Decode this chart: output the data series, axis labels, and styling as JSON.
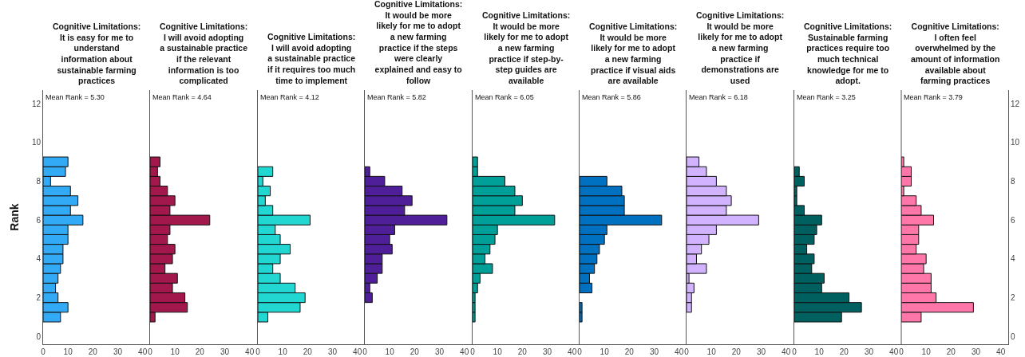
{
  "chart_data": [
    {
      "type": "histogram",
      "title": "Cognitive Limitations:\nIt is easy for me to\nunderstand\ninformation about\nsustainable farming\npractices",
      "ylabel": "Rank",
      "annotations": [
        "Mean Rank = 5.30"
      ],
      "bins": [
        0.75,
        1.25,
        1.75,
        2.25,
        2.75,
        3.25,
        3.75,
        4.25,
        4.75,
        5.25,
        5.75,
        6.25,
        6.75,
        7.25,
        7.75,
        8.25,
        8.75,
        9.25
      ],
      "values": [
        7,
        10,
        6,
        5,
        6,
        7,
        8,
        8,
        10,
        10,
        16,
        11,
        14,
        11,
        3,
        9,
        10
      ],
      "orientation": "horizontal",
      "color": "#33aaf5",
      "xlim": [
        0,
        43
      ],
      "xticks": [
        0,
        10,
        20,
        30,
        40
      ],
      "ylim": [
        -0.4,
        12.7
      ],
      "yticks": [
        0,
        2,
        4,
        6,
        8,
        10,
        12
      ]
    },
    {
      "type": "histogram",
      "title": "Cognitive Limitations:\nI will avoid adopting\na sustainable practice\nif the relevant\ninformation is too\ncomplicated",
      "annotations": [
        "Mean Rank = 4.64"
      ],
      "bins": [
        0.75,
        1.25,
        1.75,
        2.25,
        2.75,
        3.25,
        3.75,
        4.25,
        4.75,
        5.25,
        5.75,
        6.25,
        6.75,
        7.25,
        7.75,
        8.25,
        8.75,
        9.25
      ],
      "values": [
        2,
        15,
        14,
        9,
        11,
        6,
        9,
        10,
        7,
        8,
        24,
        8,
        10,
        7,
        4,
        3,
        4
      ],
      "orientation": "horizontal",
      "color": "#a3184c",
      "xlim": [
        0,
        43
      ],
      "xticks": [
        0,
        10,
        20,
        30,
        40
      ],
      "ylim": [
        -0.4,
        12.7
      ],
      "yticks": [
        0,
        2,
        4,
        6,
        8,
        10,
        12
      ],
      "tick_labels": "x"
    },
    {
      "type": "histogram",
      "title": "Cognitive Limitations:\nI will avoid adopting\na sustainable practice\nif it requires too much\ntime to implement",
      "annotations": [
        "Mean Rank = 4.12"
      ],
      "bins": [
        0.75,
        1.25,
        1.75,
        2.25,
        2.75,
        3.25,
        3.75,
        4.25,
        4.75,
        5.25,
        5.75,
        6.25,
        6.75,
        7.25,
        7.75,
        8.25,
        8.75,
        9.25
      ],
      "values": [
        4,
        17,
        19,
        15,
        9,
        6,
        9,
        13,
        9,
        7,
        21,
        6,
        3,
        5,
        2,
        6,
        0
      ],
      "orientation": "horizontal",
      "color": "#22d6d2",
      "xlim": [
        0,
        43
      ],
      "xticks": [
        0,
        10,
        20,
        30,
        40
      ],
      "ylim": [
        -0.4,
        12.7
      ],
      "yticks": [
        0,
        2,
        4,
        6,
        8,
        10,
        12
      ],
      "tick_labels": "x"
    },
    {
      "type": "histogram",
      "title": "Cognitive Limitations:\nIt would be more\nlikely for me to adopt\na new farming\npractice if the steps\nwere clearly\nexplained and easy to\nfollow",
      "annotations": [
        "Mean Rank = 5.82"
      ],
      "bins": [
        0.75,
        1.25,
        1.75,
        2.25,
        2.75,
        3.25,
        3.75,
        4.25,
        4.75,
        5.25,
        5.75,
        6.25,
        6.75,
        7.25,
        7.75,
        8.25,
        8.75,
        9.25
      ],
      "values": [
        0,
        0,
        3,
        2,
        5,
        7,
        7,
        11,
        10,
        12,
        33,
        16,
        19,
        15,
        8,
        2,
        0
      ],
      "orientation": "horizontal",
      "color": "#4f1f99",
      "xlim": [
        0,
        43
      ],
      "xticks": [
        0,
        10,
        20,
        30,
        40
      ],
      "ylim": [
        -0.4,
        12.7
      ],
      "yticks": [
        0,
        2,
        4,
        6,
        8,
        10,
        12
      ],
      "tick_labels": "x"
    },
    {
      "type": "histogram",
      "title": "Cognitive Limitations:\nIt would be more\nlikely for me to adopt\na new farming\npractice if step-by-\nstep guides are\navailable",
      "annotations": [
        "Mean Rank = 6.05"
      ],
      "bins": [
        0.75,
        1.25,
        1.75,
        2.25,
        2.75,
        3.25,
        3.75,
        4.25,
        4.75,
        5.25,
        5.75,
        6.25,
        6.75,
        7.25,
        7.75,
        8.25,
        8.75,
        9.25
      ],
      "values": [
        1,
        1,
        1,
        2,
        3,
        8,
        5,
        7,
        9,
        10,
        33,
        17,
        20,
        17,
        13,
        2,
        2
      ],
      "orientation": "horizontal",
      "color": "#00a099",
      "xlim": [
        0,
        43
      ],
      "xticks": [
        0,
        10,
        20,
        30,
        40
      ],
      "ylim": [
        -0.4,
        12.7
      ],
      "yticks": [
        0,
        2,
        4,
        6,
        8,
        10,
        12
      ],
      "tick_labels": "x"
    },
    {
      "type": "histogram",
      "title": "Cognitive Limitations:\nIt would be more\nlikely for me to adopt\na new farming\npractice if visual aids\nare available",
      "annotations": [
        "Mean Rank = 5.86"
      ],
      "bins": [
        0.75,
        1.25,
        1.75,
        2.25,
        2.75,
        3.25,
        3.75,
        4.25,
        4.75,
        5.25,
        5.75,
        6.25,
        6.75,
        7.25,
        7.75,
        8.25,
        8.75,
        9.25
      ],
      "values": [
        1,
        1,
        0,
        5,
        4,
        6,
        7,
        8,
        10,
        11,
        33,
        18,
        18,
        17,
        11,
        0,
        0
      ],
      "orientation": "horizontal",
      "color": "#0070c0",
      "xlim": [
        0,
        43
      ],
      "xticks": [
        0,
        10,
        20,
        30,
        40
      ],
      "ylim": [
        -0.4,
        12.7
      ],
      "yticks": [
        0,
        2,
        4,
        6,
        8,
        10,
        12
      ],
      "tick_labels": "x"
    },
    {
      "type": "histogram",
      "title": "Cognitive Limitations:\nIt would be more\nlikely for me to adopt\na new farming\npractice if\ndemonstrations are\nused",
      "annotations": [
        "Mean Rank = 6.18"
      ],
      "bins": [
        0.75,
        1.25,
        1.75,
        2.25,
        2.75,
        3.25,
        3.75,
        4.25,
        4.75,
        5.25,
        5.75,
        6.25,
        6.75,
        7.25,
        7.75,
        8.25,
        8.75,
        9.25
      ],
      "values": [
        0,
        2,
        2,
        3,
        1,
        8,
        4,
        6,
        9,
        12,
        29,
        16,
        18,
        16,
        12,
        8,
        5
      ],
      "orientation": "horizontal",
      "color": "#d1b3ff",
      "xlim": [
        0,
        43
      ],
      "xticks": [
        0,
        10,
        20,
        30,
        40
      ],
      "ylim": [
        -0.4,
        12.7
      ],
      "yticks": [
        0,
        2,
        4,
        6,
        8,
        10,
        12
      ],
      "tick_labels": "x"
    },
    {
      "type": "histogram",
      "title": "Cognitive Limitations:\nSustainable farming\npractices require too\nmuch technical\nknowledge for me to\nadopt.",
      "annotations": [
        "Mean Rank = 3.25"
      ],
      "bins": [
        0.75,
        1.25,
        1.75,
        2.25,
        2.75,
        3.25,
        3.75,
        4.25,
        4.75,
        5.25,
        5.75,
        6.25,
        6.75,
        7.25,
        7.75,
        8.25,
        8.75,
        9.25
      ],
      "values": [
        19,
        27,
        22,
        11,
        12,
        7,
        8,
        5,
        8,
        9,
        11,
        4,
        1,
        1,
        4,
        2,
        0
      ],
      "orientation": "horizontal",
      "color": "#006060",
      "xlim": [
        0,
        43
      ],
      "xticks": [
        0,
        10,
        20,
        30,
        40
      ],
      "ylim": [
        -0.4,
        12.7
      ],
      "yticks": [
        0,
        2,
        4,
        6,
        8,
        10,
        12
      ],
      "tick_labels": "x"
    },
    {
      "type": "histogram",
      "title": "Cognitive Limitations:\nI often feel\noverwhelmed by the\namount of information\navailable about\nfarming practices",
      "annotations": [
        "Mean Rank = 3.79"
      ],
      "bins": [
        0.75,
        1.25,
        1.75,
        2.25,
        2.75,
        3.25,
        3.75,
        4.25,
        4.75,
        5.25,
        5.75,
        6.25,
        6.75,
        7.25,
        7.75,
        8.25,
        8.75,
        9.25
      ],
      "values": [
        8,
        29,
        14,
        12,
        12,
        9,
        10,
        6,
        7,
        7,
        13,
        8,
        6,
        1,
        4,
        4,
        1
      ],
      "orientation": "horizontal",
      "color": "#ff77a8",
      "xlim": [
        0,
        43
      ],
      "xticks": [
        0,
        10,
        20,
        30,
        40
      ],
      "ylim": [
        -0.4,
        12.7
      ],
      "yticks": [
        0,
        2,
        4,
        6,
        8,
        10,
        12
      ]
    }
  ]
}
